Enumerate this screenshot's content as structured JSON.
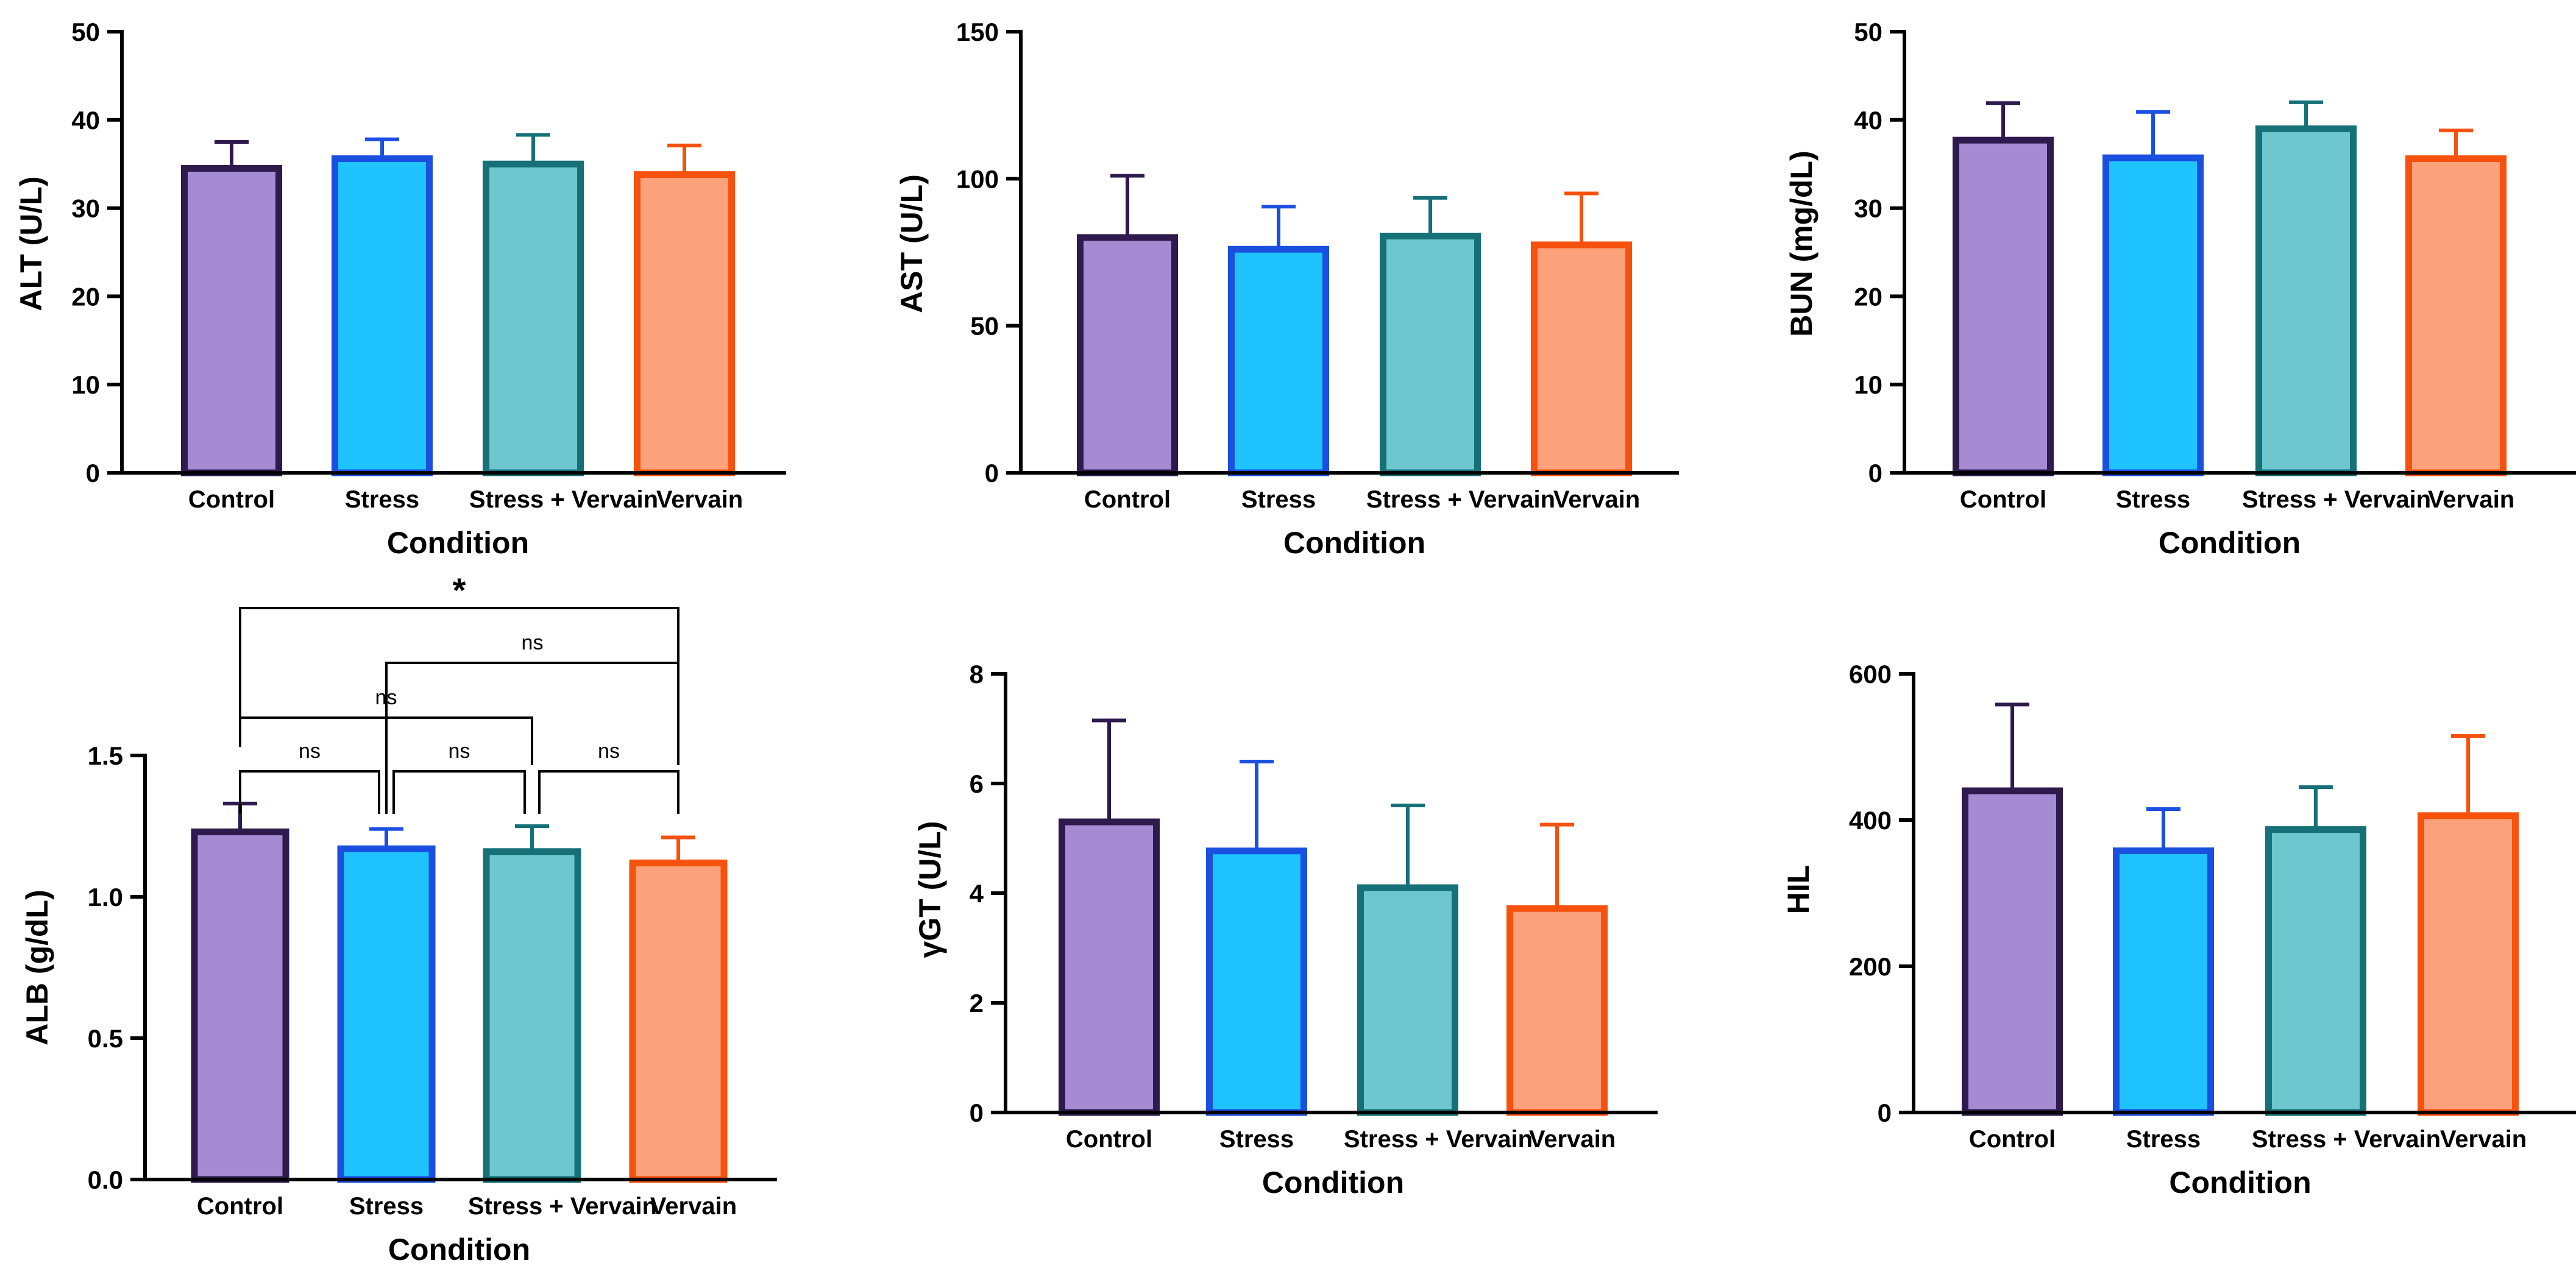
{
  "colors": {
    "control_fill": "#a68ad4",
    "control_stroke": "#2e1a4d",
    "stress_fill": "#1ec3ff",
    "stress_stroke": "#1b4fe0",
    "stress_vervain_fill": "#6ec7ce",
    "stress_vervain_stroke": "#157078",
    "vervain_fill": "#fba27c",
    "vervain_stroke": "#f6520e",
    "axis": "#000000"
  },
  "chart_data": [
    {
      "id": "alt",
      "type": "bar",
      "categories": [
        "Control",
        "Stress",
        "Stress + Vervain",
        "Vervain"
      ],
      "values": [
        34.5,
        35.6,
        35.0,
        33.8
      ],
      "errors": [
        3.0,
        2.2,
        3.3,
        3.3
      ],
      "ylabel": "ALT (U/L)",
      "xlabel": "Condition",
      "ylim": [
        0,
        50
      ],
      "yticks": [
        0,
        10,
        20,
        30,
        40,
        50
      ],
      "tick_labels": [
        "0",
        "10",
        "20",
        "30",
        "40",
        "50"
      ],
      "grid": false
    },
    {
      "id": "ast",
      "type": "bar",
      "categories": [
        "Control",
        "Stress",
        "Stress + Vervain",
        "Vervain"
      ],
      "values": [
        80,
        76,
        80.5,
        77.5
      ],
      "errors": [
        21,
        14.5,
        13,
        17.5
      ],
      "ylabel": "AST (U/L)",
      "xlabel": "Condition",
      "ylim": [
        0,
        150
      ],
      "yticks": [
        0,
        50,
        100,
        150
      ],
      "tick_labels": [
        "0",
        "50",
        "100",
        "150"
      ],
      "grid": false
    },
    {
      "id": "bun",
      "type": "bar",
      "categories": [
        "Control",
        "Stress",
        "Stress + Vervain",
        "Vervain"
      ],
      "values": [
        37.7,
        35.7,
        39.0,
        35.6
      ],
      "errors": [
        4.2,
        5.2,
        3.0,
        3.2
      ],
      "ylabel": "BUN (mg/dL)",
      "xlabel": "Condition",
      "ylim": [
        0,
        50
      ],
      "yticks": [
        0,
        10,
        20,
        30,
        40,
        50
      ],
      "tick_labels": [
        "0",
        "10",
        "20",
        "30",
        "40",
        "50"
      ],
      "grid": false
    },
    {
      "id": "alb",
      "type": "bar",
      "categories": [
        "Control",
        "Stress",
        "Stress + Vervain",
        "Vervain"
      ],
      "values": [
        1.23,
        1.17,
        1.16,
        1.12
      ],
      "errors": [
        0.1,
        0.07,
        0.09,
        0.09
      ],
      "ylabel": "ALB (g/dL)",
      "xlabel": "Condition",
      "ylim": [
        0,
        1.5
      ],
      "yticks": [
        0,
        0.5,
        1.0,
        1.5
      ],
      "tick_labels": [
        "0.0",
        "0.5",
        "1.0",
        "1.5"
      ],
      "grid": false,
      "significance": [
        {
          "from": 0,
          "to": 1,
          "label": "ns",
          "level": 1
        },
        {
          "from": 1,
          "to": 2,
          "label": "ns",
          "level": 1
        },
        {
          "from": 2,
          "to": 3,
          "label": "ns",
          "level": 1
        },
        {
          "from": 0,
          "to": 2,
          "label": "ns",
          "level": 2
        },
        {
          "from": 1,
          "to": 3,
          "label": "ns",
          "level": 3
        },
        {
          "from": 0,
          "to": 3,
          "label": "*",
          "level": 4
        }
      ]
    },
    {
      "id": "ggt",
      "type": "bar",
      "categories": [
        "Control",
        "Stress",
        "Stress + Vervain",
        "Vervain"
      ],
      "values": [
        5.3,
        4.77,
        4.1,
        3.72
      ],
      "errors": [
        1.85,
        1.63,
        1.5,
        1.53
      ],
      "ylabel": "γGT (U/L)",
      "xlabel": "Condition",
      "ylim": [
        0,
        8
      ],
      "yticks": [
        0,
        2,
        4,
        6,
        8
      ],
      "tick_labels": [
        "0",
        "2",
        "4",
        "6",
        "8"
      ],
      "grid": false
    },
    {
      "id": "hil",
      "type": "bar",
      "categories": [
        "Control",
        "Stress",
        "Stress + Vervain",
        "Vervain"
      ],
      "values": [
        440,
        358,
        387,
        406
      ],
      "errors": [
        118,
        57,
        58,
        109
      ],
      "ylabel": "HIL",
      "xlabel": "Condition",
      "ylim": [
        0,
        600
      ],
      "yticks": [
        0,
        200,
        400,
        600
      ],
      "tick_labels": [
        "0",
        "200",
        "400",
        "600"
      ],
      "grid": false
    }
  ]
}
